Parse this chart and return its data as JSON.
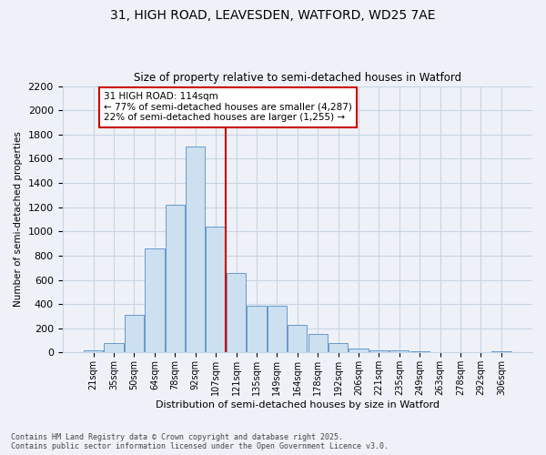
{
  "title_line1": "31, HIGH ROAD, LEAVESDEN, WATFORD, WD25 7AE",
  "title_line2": "Size of property relative to semi-detached houses in Watford",
  "xlabel": "Distribution of semi-detached houses by size in Watford",
  "ylabel": "Number of semi-detached properties",
  "categories": [
    "21sqm",
    "35sqm",
    "50sqm",
    "64sqm",
    "78sqm",
    "92sqm",
    "107sqm",
    "121sqm",
    "135sqm",
    "149sqm",
    "164sqm",
    "178sqm",
    "192sqm",
    "206sqm",
    "221sqm",
    "235sqm",
    "249sqm",
    "263sqm",
    "278sqm",
    "292sqm",
    "306sqm"
  ],
  "values": [
    20,
    75,
    310,
    860,
    1220,
    1700,
    1040,
    660,
    390,
    390,
    230,
    150,
    80,
    30,
    20,
    15,
    10,
    5,
    2,
    2,
    10
  ],
  "bar_color": "#cce0f0",
  "bar_edge_color": "#6699cc",
  "vline_x_index": 7,
  "vline_color": "#cc0000",
  "annotation_text_line1": "31 HIGH ROAD: 114sqm",
  "annotation_text_line2": "← 77% of semi-detached houses are smaller (4,287)",
  "annotation_text_line3": "22% of semi-detached houses are larger (1,255) →",
  "annotation_box_color": "#cc0000",
  "annotation_bg": "#ffffff",
  "ylim": [
    0,
    2200
  ],
  "yticks": [
    0,
    200,
    400,
    600,
    800,
    1000,
    1200,
    1400,
    1600,
    1800,
    2000,
    2200
  ],
  "footer_line1": "Contains HM Land Registry data © Crown copyright and database right 2025.",
  "footer_line2": "Contains public sector information licensed under the Open Government Licence v3.0.",
  "bg_color": "#eef2f8",
  "grid_color": "#c8d4e4",
  "plot_bg": "#eef2f8"
}
